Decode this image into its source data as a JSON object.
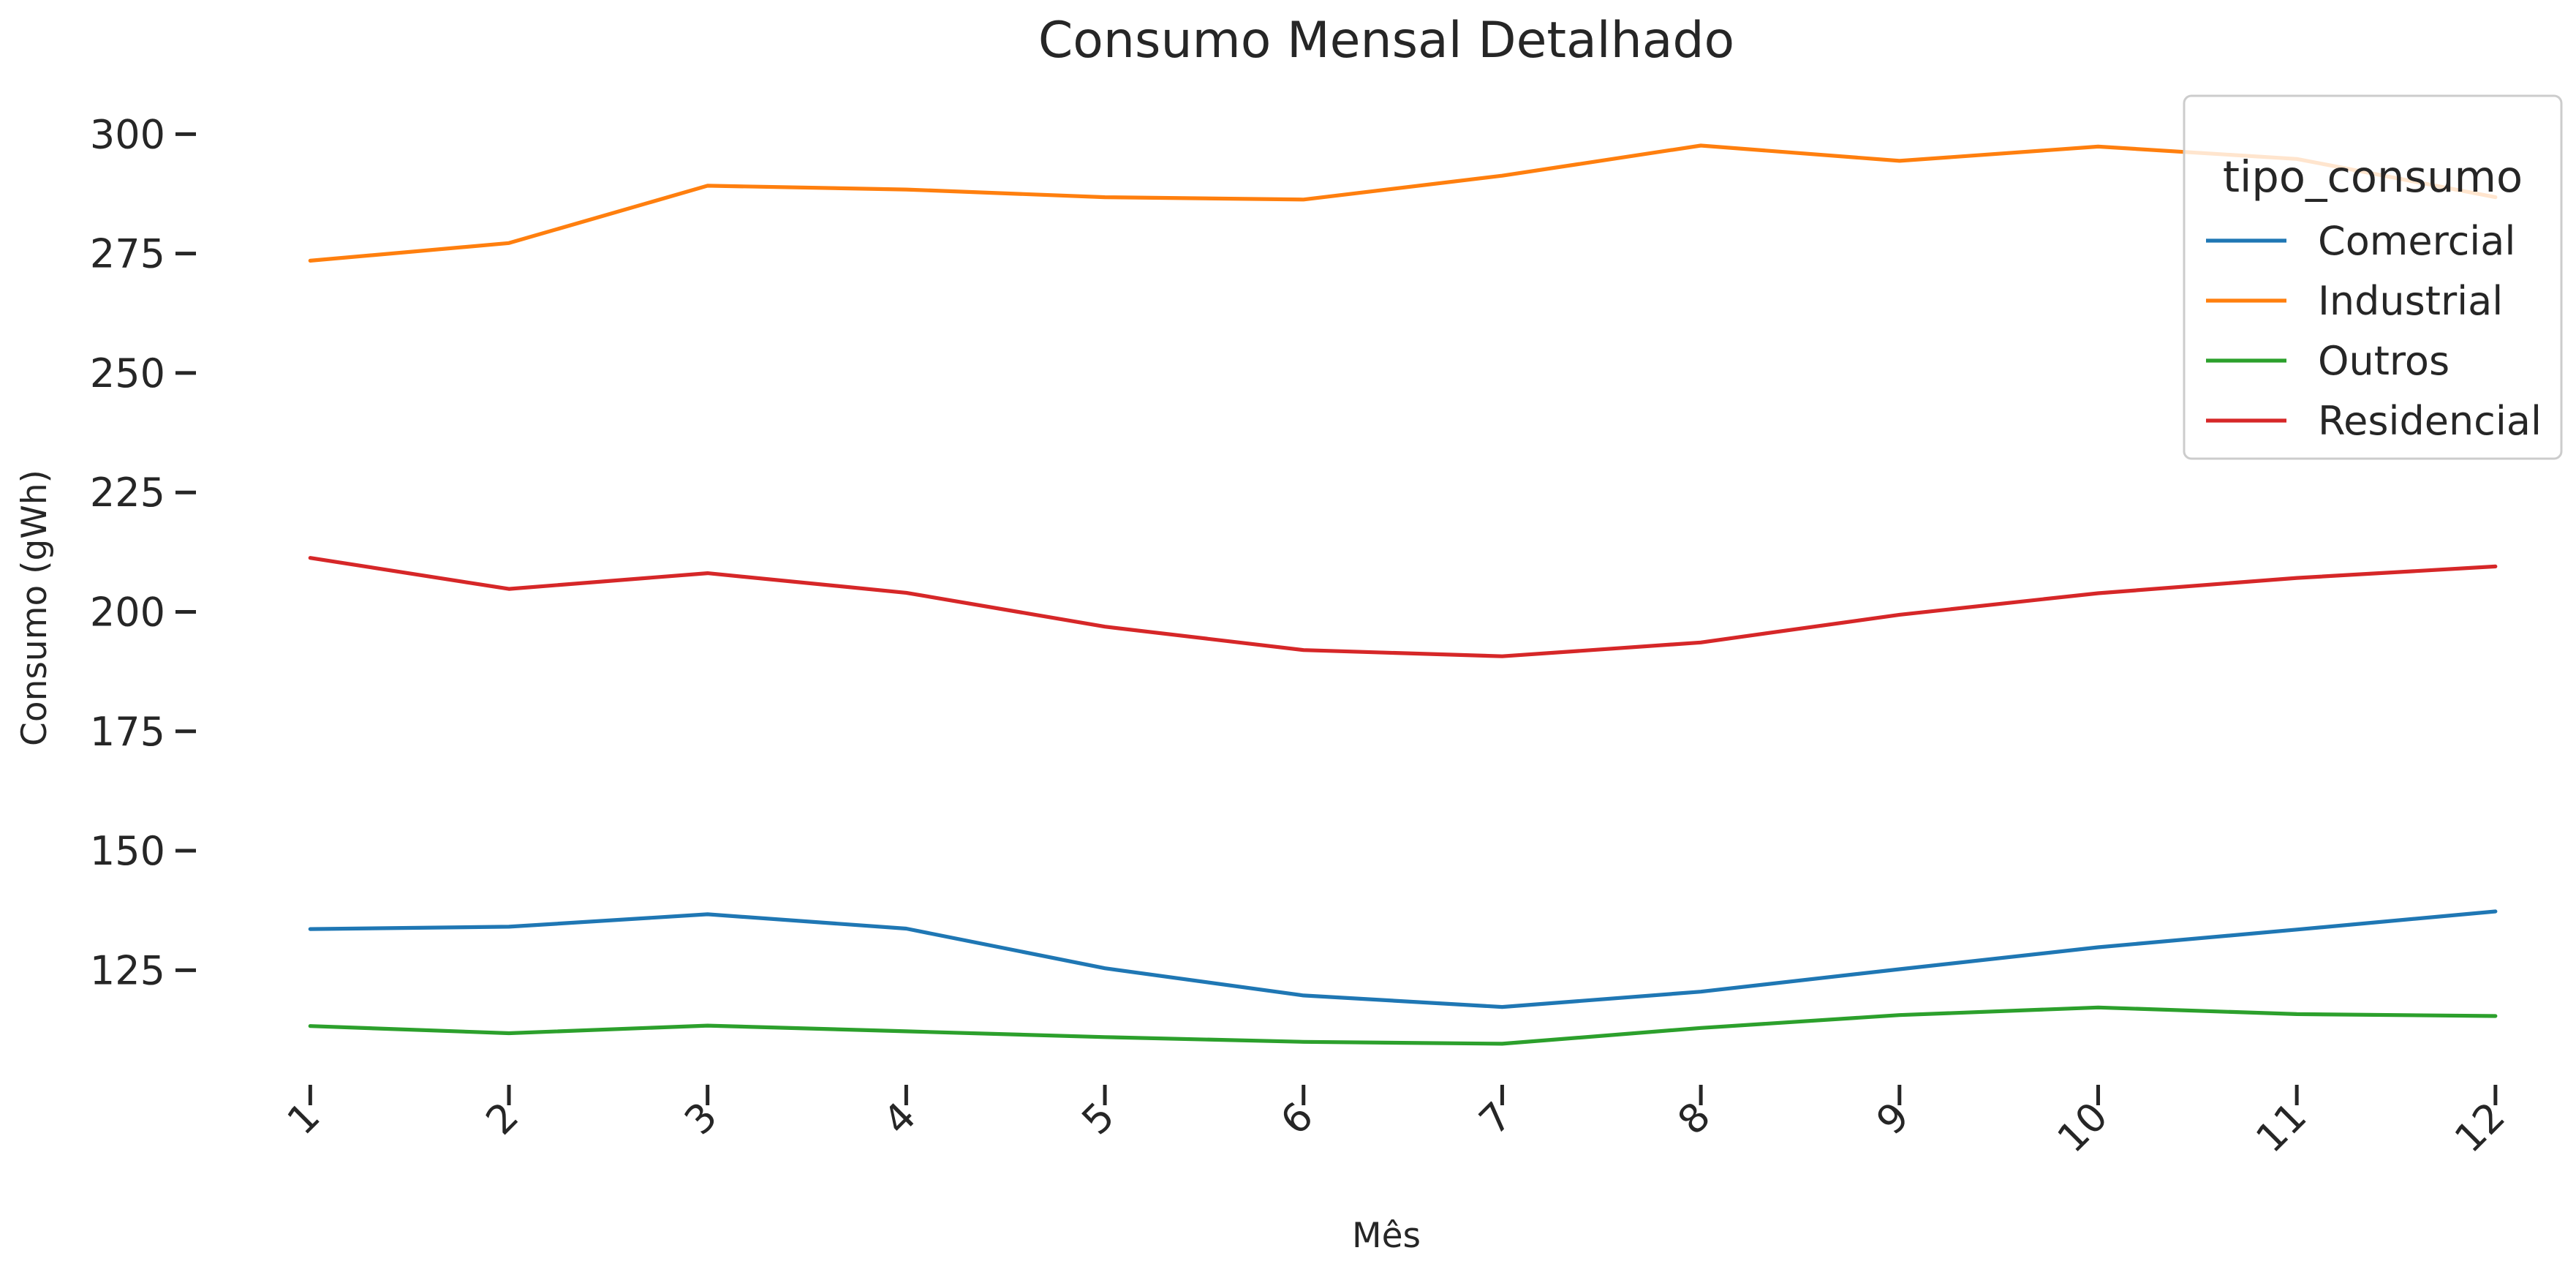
{
  "chart_data": {
    "type": "line",
    "title": "Consumo Mensal Detalhado",
    "xlabel": "Mês",
    "ylabel": "Consumo (gWh)",
    "x": [
      1,
      2,
      3,
      4,
      5,
      6,
      7,
      8,
      9,
      10,
      11,
      12
    ],
    "x_tick_labels": [
      "1",
      "2",
      "3",
      "4",
      "5",
      "6",
      "7",
      "8",
      "9",
      "10",
      "11",
      "12"
    ],
    "y_ticks": [
      125,
      150,
      175,
      200,
      225,
      250,
      275,
      300
    ],
    "y_tick_labels": [
      "125",
      "150",
      "175",
      "200",
      "225",
      "250",
      "275",
      "300"
    ],
    "xlim": [
      0.8,
      12.1
    ],
    "ylim": [
      103,
      312
    ],
    "grid": false,
    "legend": {
      "title": "tipo_consumo",
      "placement": "top-right"
    },
    "series": [
      {
        "name": "Comercial",
        "color": "#1f77b4",
        "values": [
          133.6,
          134.1,
          136.7,
          133.7,
          125.4,
          119.7,
          117.3,
          120.5,
          125.2,
          129.8,
          133.5,
          137.3
        ]
      },
      {
        "name": "Industrial",
        "color": "#ff7f0e",
        "values": [
          273.5,
          277.2,
          289.2,
          288.4,
          286.8,
          286.3,
          291.3,
          297.6,
          294.4,
          297.4,
          294.8,
          286.8
        ]
      },
      {
        "name": "Outros",
        "color": "#2ca02c",
        "values": [
          113.3,
          111.8,
          113.4,
          112.2,
          111.0,
          110.0,
          109.6,
          112.9,
          115.6,
          117.2,
          115.8,
          115.4
        ]
      },
      {
        "name": "Residencial",
        "color": "#d62728",
        "values": [
          211.3,
          204.8,
          208.1,
          204.0,
          196.9,
          192.0,
          190.7,
          193.6,
          199.4,
          203.9,
          207.1,
          209.5
        ]
      }
    ]
  }
}
